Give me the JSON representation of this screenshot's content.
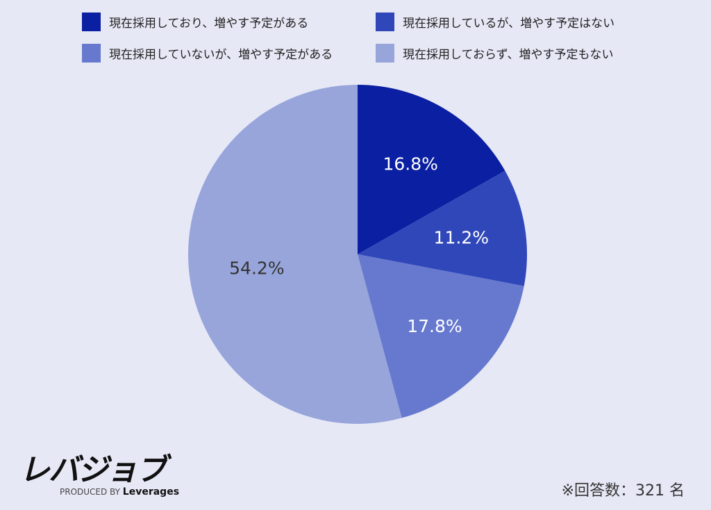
{
  "chart_data": {
    "type": "pie",
    "start": "top",
    "direction": "clockwise",
    "slices": [
      {
        "label": "現在採用しており、増やす予定がある",
        "value": 16.8,
        "display": "16.8%",
        "color": "#0a1fa1",
        "text_color": "#ffffff"
      },
      {
        "label": "現在採用しているが、増やす予定はない",
        "value": 11.2,
        "display": "11.2%",
        "color": "#3047ba",
        "text_color": "#ffffff"
      },
      {
        "label": "現在採用していないが、増やす予定がある",
        "value": 17.8,
        "display": "17.8%",
        "color": "#6679ce",
        "text_color": "#ffffff"
      },
      {
        "label": "現在採用しておらず、増やす予定もない",
        "value": 54.2,
        "display": "54.2%",
        "color": "#97a5db",
        "text_color": "#333333"
      }
    ],
    "legend_placement": "top"
  },
  "logo": {
    "main": "レバジョブ",
    "sub_prefix": "PRODUCED BY",
    "sub_brand": "Leverages"
  },
  "note": "※回答数：321 名"
}
